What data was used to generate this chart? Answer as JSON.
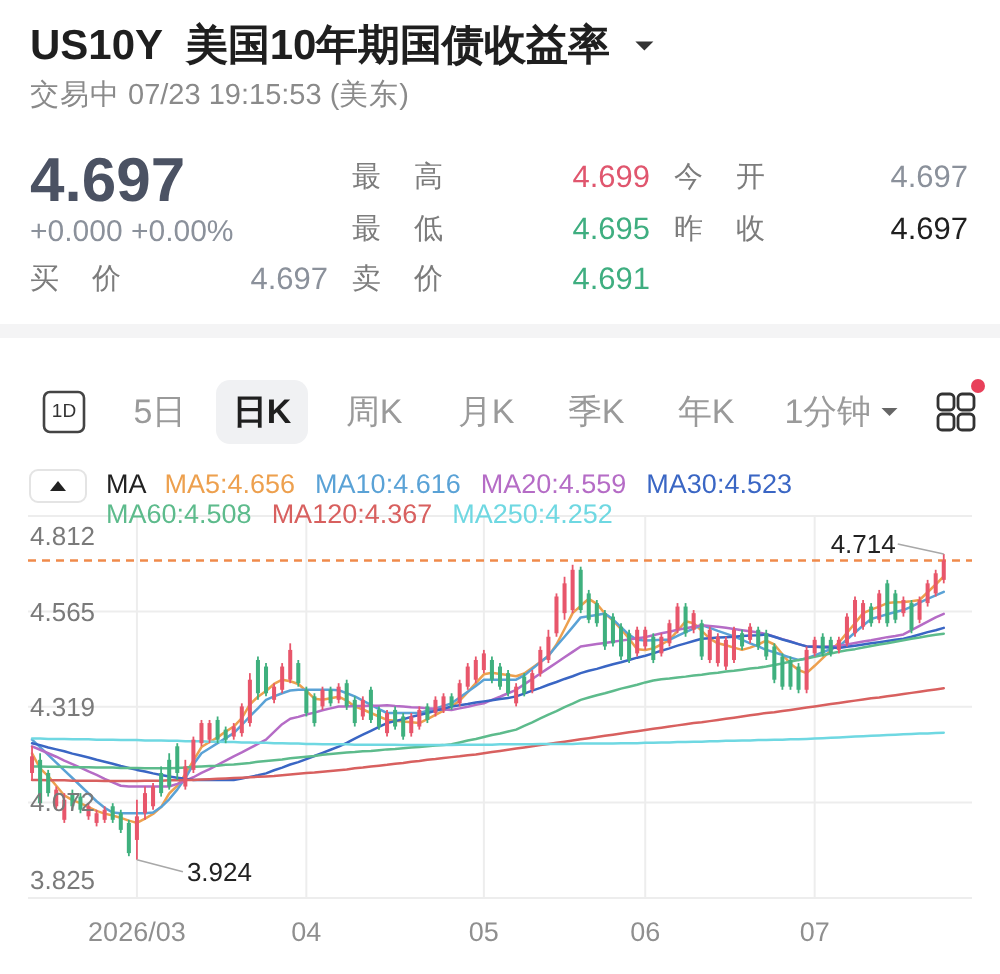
{
  "chart_data": [
    {
      "type": "other",
      "title": "US10Y  美国10年期国债收益率",
      "subtitle": "交易中 07/23 19:15:53 (美东)",
      "annotations": [
        "4.697",
        "+0.000 +0.00%",
        "最 高",
        "4.699",
        "今 开",
        "4.697",
        "最 低",
        "4.695",
        "昨 收",
        "4.697",
        "买 价",
        "4.697",
        "卖 价",
        "4.691",
        "1D",
        "5日",
        "日K",
        "周K",
        "月K",
        "季K",
        "年K",
        "1分钟"
      ]
    },
    {
      "type": "candlestick",
      "categories": [
        null,
        null,
        null,
        null,
        null,
        null,
        null,
        null,
        null,
        null,
        null,
        null,
        null,
        "2026/03",
        null,
        null,
        null,
        null,
        null,
        null,
        null,
        null,
        null,
        null,
        null,
        null,
        null,
        null,
        null,
        null,
        null,
        null,
        null,
        null,
        "04",
        null,
        null,
        null,
        null,
        null,
        null,
        null,
        null,
        null,
        null,
        null,
        null,
        null,
        null,
        null,
        null,
        null,
        null,
        null,
        null,
        null,
        "05",
        null,
        null,
        null,
        null,
        null,
        null,
        null,
        null,
        null,
        null,
        null,
        null,
        null,
        null,
        null,
        null,
        null,
        null,
        null,
        "06",
        null,
        null,
        null,
        null,
        null,
        null,
        null,
        null,
        null,
        null,
        null,
        null,
        null,
        null,
        null,
        null,
        null,
        null,
        null,
        null,
        "07",
        null,
        null,
        null,
        null,
        null,
        null,
        null,
        null,
        null,
        null,
        null,
        null,
        null,
        null,
        null,
        null
      ],
      "ohlc": [
        [
          4.148,
          4.217,
          4.13,
          4.191
        ],
        [
          4.182,
          4.199,
          4.062,
          4.07
        ],
        [
          4.148,
          4.156,
          4.087,
          4.096
        ],
        [
          4.062,
          4.113,
          4.053,
          4.105
        ],
        [
          4.027,
          4.096,
          4.019,
          4.079
        ],
        [
          4.096,
          4.105,
          4.053,
          4.062
        ],
        [
          4.087,
          4.096,
          4.044,
          4.053
        ],
        [
          4.036,
          4.07,
          4.027,
          4.062
        ],
        [
          4.019,
          4.053,
          4.01,
          4.044
        ],
        [
          4.027,
          4.062,
          4.019,
          4.053
        ],
        [
          4.062,
          4.07,
          4.019,
          4.027
        ],
        [
          4.044,
          4.053,
          3.993,
          4.001
        ],
        [
          4.019,
          4.027,
          3.933,
          3.941
        ],
        [
          3.975,
          4.079,
          3.924,
          4.036
        ],
        [
          4.044,
          4.113,
          4.027,
          4.096
        ],
        [
          4.062,
          4.122,
          4.053,
          4.113
        ],
        [
          4.148,
          4.165,
          4.087,
          4.096
        ],
        [
          4.182,
          4.199,
          4.105,
          4.113
        ],
        [
          4.217,
          4.225,
          4.13,
          4.148
        ],
        [
          4.113,
          4.182,
          4.105,
          4.165
        ],
        [
          4.156,
          4.242,
          4.148,
          4.234
        ],
        [
          4.225,
          4.285,
          4.217,
          4.277
        ],
        [
          4.234,
          4.285,
          4.225,
          4.277
        ],
        [
          4.285,
          4.294,
          4.225,
          4.234
        ],
        [
          4.26,
          4.268,
          4.225,
          4.234
        ],
        [
          4.242,
          4.277,
          4.234,
          4.268
        ],
        [
          4.251,
          4.328,
          4.242,
          4.32
        ],
        [
          4.277,
          4.406,
          4.268,
          4.389
        ],
        [
          4.44,
          4.449,
          4.337,
          4.354
        ],
        [
          4.423,
          4.432,
          4.346,
          4.354
        ],
        [
          4.337,
          4.38,
          4.328,
          4.371
        ],
        [
          4.363,
          4.432,
          4.354,
          4.423
        ],
        [
          4.389,
          4.483,
          4.38,
          4.466
        ],
        [
          4.432,
          4.44,
          4.371,
          4.38
        ],
        [
          4.363,
          4.371,
          4.294,
          4.303
        ],
        [
          4.346,
          4.354,
          4.268,
          4.277
        ],
        [
          4.32,
          4.371,
          4.311,
          4.363
        ],
        [
          4.363,
          4.371,
          4.32,
          4.328
        ],
        [
          4.337,
          4.38,
          4.328,
          4.371
        ],
        [
          4.38,
          4.389,
          4.311,
          4.32
        ],
        [
          4.337,
          4.346,
          4.268,
          4.277
        ],
        [
          4.294,
          4.346,
          4.285,
          4.337
        ],
        [
          4.363,
          4.371,
          4.277,
          4.285
        ],
        [
          4.311,
          4.32,
          4.26,
          4.268
        ],
        [
          4.251,
          4.311,
          4.242,
          4.303
        ],
        [
          4.311,
          4.32,
          4.26,
          4.268
        ],
        [
          4.294,
          4.303,
          4.234,
          4.242
        ],
        [
          4.251,
          4.303,
          4.242,
          4.294
        ],
        [
          4.268,
          4.32,
          4.26,
          4.311
        ],
        [
          4.32,
          4.328,
          4.277,
          4.285
        ],
        [
          4.303,
          4.346,
          4.294,
          4.337
        ],
        [
          4.311,
          4.354,
          4.303,
          4.346
        ],
        [
          4.346,
          4.354,
          4.311,
          4.32
        ],
        [
          4.328,
          4.389,
          4.32,
          4.38
        ],
        [
          4.371,
          4.432,
          4.363,
          4.423
        ],
        [
          4.389,
          4.449,
          4.38,
          4.44
        ],
        [
          4.414,
          4.466,
          4.406,
          4.457
        ],
        [
          4.44,
          4.449,
          4.38,
          4.389
        ],
        [
          4.423,
          4.432,
          4.363,
          4.371
        ],
        [
          4.406,
          4.414,
          4.346,
          4.354
        ],
        [
          4.328,
          4.38,
          4.32,
          4.371
        ],
        [
          4.397,
          4.406,
          4.346,
          4.354
        ],
        [
          4.363,
          4.414,
          4.354,
          4.406
        ],
        [
          4.406,
          4.475,
          4.397,
          4.466
        ],
        [
          4.44,
          4.518,
          4.432,
          4.5
        ],
        [
          4.509,
          4.612,
          4.5,
          4.604
        ],
        [
          4.561,
          4.655,
          4.544,
          4.638
        ],
        [
          4.569,
          4.686,
          4.561,
          4.673
        ],
        [
          4.673,
          4.681,
          4.561,
          4.569
        ],
        [
          4.612,
          4.621,
          4.535,
          4.544
        ],
        [
          4.587,
          4.595,
          4.526,
          4.535
        ],
        [
          4.561,
          4.569,
          4.466,
          4.475
        ],
        [
          4.552,
          4.561,
          4.475,
          4.483
        ],
        [
          4.526,
          4.535,
          4.44,
          4.449
        ],
        [
          4.509,
          4.518,
          4.432,
          4.44
        ],
        [
          4.457,
          4.526,
          4.449,
          4.518
        ],
        [
          4.475,
          4.526,
          4.466,
          4.518
        ],
        [
          4.5,
          4.509,
          4.432,
          4.44
        ],
        [
          4.457,
          4.509,
          4.449,
          4.5
        ],
        [
          4.483,
          4.544,
          4.475,
          4.535
        ],
        [
          4.518,
          4.587,
          4.509,
          4.578
        ],
        [
          4.578,
          4.587,
          4.5,
          4.509
        ],
        [
          4.518,
          4.569,
          4.509,
          4.561
        ],
        [
          4.535,
          4.544,
          4.44,
          4.449
        ],
        [
          4.44,
          4.526,
          4.432,
          4.518
        ],
        [
          4.432,
          4.509,
          4.423,
          4.5
        ],
        [
          4.423,
          4.5,
          4.414,
          4.492
        ],
        [
          4.44,
          4.526,
          4.432,
          4.518
        ],
        [
          4.509,
          4.518,
          4.466,
          4.475
        ],
        [
          4.492,
          4.535,
          4.483,
          4.526
        ],
        [
          4.518,
          4.526,
          4.466,
          4.475
        ],
        [
          4.509,
          4.518,
          4.44,
          4.449
        ],
        [
          4.475,
          4.483,
          4.38,
          4.389
        ],
        [
          4.449,
          4.457,
          4.363,
          4.371
        ],
        [
          4.44,
          4.449,
          4.363,
          4.371
        ],
        [
          4.423,
          4.432,
          4.354,
          4.363
        ],
        [
          4.363,
          4.475,
          4.354,
          4.466
        ],
        [
          4.457,
          4.5,
          4.449,
          4.492
        ],
        [
          4.5,
          4.509,
          4.449,
          4.457
        ],
        [
          4.492,
          4.5,
          4.449,
          4.457
        ],
        [
          4.466,
          4.5,
          4.457,
          4.492
        ],
        [
          4.483,
          4.561,
          4.475,
          4.552
        ],
        [
          4.509,
          4.604,
          4.5,
          4.595
        ],
        [
          4.526,
          4.595,
          4.518,
          4.587
        ],
        [
          4.578,
          4.587,
          4.526,
          4.535
        ],
        [
          4.544,
          4.621,
          4.535,
          4.612
        ],
        [
          4.638,
          4.647,
          4.526,
          4.535
        ],
        [
          4.612,
          4.621,
          4.535,
          4.544
        ],
        [
          4.561,
          4.604,
          4.552,
          4.595
        ],
        [
          4.587,
          4.595,
          4.509,
          4.518
        ],
        [
          4.544,
          4.604,
          4.535,
          4.595
        ],
        [
          4.587,
          4.647,
          4.578,
          4.638
        ],
        [
          4.612,
          4.673,
          4.604,
          4.664
        ],
        [
          4.647,
          4.714,
          4.638,
          4.697
        ]
      ],
      "colors": [
        "#e8566b",
        "#3fb07e",
        "#3fb07e",
        "#e8566b",
        "#e8566b",
        "#3fb07e",
        "#3fb07e",
        "#e8566b",
        "#e8566b",
        "#e8566b",
        "#3fb07e",
        "#3fb07e",
        "#3fb07e",
        "#e8566b",
        "#e8566b",
        "#e8566b",
        "#3fb07e",
        "#3fb07e",
        "#3fb07e",
        "#e8566b",
        "#e8566b",
        "#e8566b",
        "#e8566b",
        "#3fb07e",
        "#3fb07e",
        "#e8566b",
        "#e8566b",
        "#e8566b",
        "#3fb07e",
        "#3fb07e",
        "#e8566b",
        "#e8566b",
        "#e8566b",
        "#3fb07e",
        "#3fb07e",
        "#3fb07e",
        "#e8566b",
        "#3fb07e",
        "#e8566b",
        "#3fb07e",
        "#3fb07e",
        "#e8566b",
        "#3fb07e",
        "#3fb07e",
        "#e8566b",
        "#3fb07e",
        "#3fb07e",
        "#e8566b",
        "#e8566b",
        "#3fb07e",
        "#e8566b",
        "#e8566b",
        "#3fb07e",
        "#e8566b",
        "#e8566b",
        "#e8566b",
        "#e8566b",
        "#3fb07e",
        "#3fb07e",
        "#3fb07e",
        "#e8566b",
        "#3fb07e",
        "#e8566b",
        "#e8566b",
        "#e8566b",
        "#e8566b",
        "#e8566b",
        "#e8566b",
        "#3fb07e",
        "#3fb07e",
        "#3fb07e",
        "#3fb07e",
        "#3fb07e",
        "#3fb07e",
        "#3fb07e",
        "#e8566b",
        "#e8566b",
        "#3fb07e",
        "#e8566b",
        "#e8566b",
        "#e8566b",
        "#3fb07e",
        "#e8566b",
        "#3fb07e",
        "#e8566b",
        "#e8566b",
        "#e8566b",
        "#e8566b",
        "#3fb07e",
        "#e8566b",
        "#3fb07e",
        "#3fb07e",
        "#3fb07e",
        "#3fb07e",
        "#3fb07e",
        "#3fb07e",
        "#e8566b",
        "#e8566b",
        "#3fb07e",
        "#3fb07e",
        "#e8566b",
        "#e8566b",
        "#e8566b",
        "#e8566b",
        "#3fb07e",
        "#e8566b",
        "#3fb07e",
        "#3fb07e",
        "#e8566b",
        "#3fb07e",
        "#e8566b",
        "#e8566b",
        "#e8566b",
        "#e8566b"
      ],
      "series": [
        {
          "name": "MA5:4.656",
          "type": "line",
          "color": "#eda04e",
          "values": [
            4.199,
            4.16,
            4.14,
            4.115,
            4.09,
            4.078,
            4.07,
            4.06,
            4.05,
            4.043,
            4.038,
            4.032,
            4.025,
            4.019,
            4.03,
            4.042,
            4.06,
            4.095,
            4.115,
            4.145,
            4.18,
            4.215,
            4.228,
            4.24,
            4.255,
            4.268,
            4.29,
            4.325,
            4.345,
            4.36,
            4.378,
            4.389,
            4.385,
            4.378,
            4.36,
            4.34,
            4.337,
            4.341,
            4.345,
            4.335,
            4.32,
            4.312,
            4.303,
            4.294,
            4.285,
            4.283,
            4.281,
            4.279,
            4.277,
            4.287,
            4.298,
            4.309,
            4.32,
            4.335,
            4.357,
            4.38,
            4.403,
            4.407,
            4.404,
            4.401,
            4.398,
            4.405,
            4.42,
            4.435,
            4.45,
            4.48,
            4.52,
            4.561,
            4.58,
            4.598,
            4.585,
            4.56,
            4.542,
            4.52,
            4.495,
            4.468,
            4.466,
            4.47,
            4.48,
            4.492,
            4.515,
            4.54,
            4.535,
            4.515,
            4.495,
            4.483,
            4.478,
            4.472,
            4.466,
            4.472,
            4.48,
            4.49,
            4.48,
            4.455,
            4.43,
            4.414,
            4.406,
            4.425,
            4.445,
            4.465,
            4.485,
            4.51,
            4.535,
            4.561,
            4.57,
            4.578,
            4.587,
            4.589,
            4.59,
            4.592,
            4.595,
            4.615,
            4.635,
            4.656
          ]
        },
        {
          "name": "MA10:4.616",
          "type": "line",
          "color": "#5aa2d6",
          "values": [
            4.234,
            4.215,
            4.195,
            4.175,
            4.155,
            4.135,
            4.115,
            4.095,
            4.075,
            4.058,
            4.046,
            4.044,
            4.044,
            4.044,
            4.044,
            4.046,
            4.06,
            4.08,
            4.105,
            4.135,
            4.17,
            4.199,
            4.212,
            4.225,
            4.238,
            4.251,
            4.272,
            4.294,
            4.315,
            4.337,
            4.346,
            4.354,
            4.361,
            4.363,
            4.363,
            4.363,
            4.363,
            4.363,
            4.362,
            4.354,
            4.346,
            4.335,
            4.324,
            4.313,
            4.303,
            4.303,
            4.303,
            4.303,
            4.303,
            4.309,
            4.315,
            4.321,
            4.328,
            4.343,
            4.358,
            4.373,
            4.389,
            4.389,
            4.389,
            4.389,
            4.389,
            4.4,
            4.417,
            4.434,
            4.451,
            4.476,
            4.5,
            4.525,
            4.55,
            4.553,
            4.556,
            4.56,
            4.545,
            4.525,
            4.505,
            4.492,
            4.49,
            4.491,
            4.492,
            4.492,
            4.502,
            4.512,
            4.521,
            4.53,
            4.523,
            4.515,
            4.508,
            4.501,
            4.492,
            4.483,
            4.475,
            4.466,
            4.46,
            4.453,
            4.446,
            4.44,
            4.444,
            4.452,
            4.46,
            4.468,
            4.475,
            4.493,
            4.511,
            4.529,
            4.546,
            4.552,
            4.558,
            4.564,
            4.569,
            4.578,
            4.588,
            4.598,
            4.607,
            4.616
          ]
        },
        {
          "name": "MA20:4.559",
          "type": "line",
          "color": "#b56cc6",
          "values": [
            4.217,
            4.208,
            4.199,
            4.19,
            4.18,
            4.171,
            4.162,
            4.152,
            4.143,
            4.133,
            4.124,
            4.115,
            4.113,
            4.113,
            4.113,
            4.113,
            4.113,
            4.113,
            4.12,
            4.128,
            4.137,
            4.148,
            4.158,
            4.169,
            4.18,
            4.191,
            4.201,
            4.212,
            4.223,
            4.234,
            4.254,
            4.274,
            4.288,
            4.293,
            4.299,
            4.304,
            4.31,
            4.315,
            4.32,
            4.32,
            4.321,
            4.321,
            4.322,
            4.322,
            4.323,
            4.321,
            4.32,
            4.318,
            4.317,
            4.315,
            4.314,
            4.312,
            4.311,
            4.315,
            4.319,
            4.324,
            4.328,
            4.337,
            4.345,
            4.354,
            4.363,
            4.377,
            4.391,
            4.405,
            4.419,
            4.433,
            4.447,
            4.461,
            4.475,
            4.478,
            4.481,
            4.484,
            4.487,
            4.49,
            4.493,
            4.496,
            4.499,
            4.504,
            4.509,
            4.513,
            4.518,
            4.522,
            4.526,
            4.53,
            4.528,
            4.526,
            4.523,
            4.52,
            4.517,
            4.514,
            4.511,
            4.507,
            4.5,
            4.494,
            4.488,
            4.481,
            4.475,
            4.475,
            4.475,
            4.475,
            4.476,
            4.48,
            4.484,
            4.488,
            4.491,
            4.495,
            4.499,
            4.502,
            4.506,
            4.517,
            4.528,
            4.539,
            4.55,
            4.559
          ]
        },
        {
          "name": "MA30:4.523",
          "type": "line",
          "color": "#3a66c4",
          "values": [
            4.225,
            4.22,
            4.214,
            4.209,
            4.204,
            4.198,
            4.193,
            4.188,
            4.182,
            4.177,
            4.172,
            4.166,
            4.161,
            4.156,
            4.152,
            4.147,
            4.143,
            4.139,
            4.136,
            4.133,
            4.13,
            4.13,
            4.13,
            4.13,
            4.13,
            4.13,
            4.134,
            4.138,
            4.142,
            4.147,
            4.155,
            4.162,
            4.17,
            4.176,
            4.184,
            4.192,
            4.2,
            4.208,
            4.216,
            4.226,
            4.237,
            4.247,
            4.257,
            4.267,
            4.277,
            4.282,
            4.287,
            4.293,
            4.298,
            4.303,
            4.309,
            4.314,
            4.32,
            4.323,
            4.326,
            4.33,
            4.333,
            4.336,
            4.339,
            4.342,
            4.346,
            4.353,
            4.361,
            4.368,
            4.376,
            4.383,
            4.391,
            4.398,
            4.406,
            4.412,
            4.417,
            4.423,
            4.429,
            4.434,
            4.44,
            4.446,
            4.451,
            4.457,
            4.464,
            4.47,
            4.477,
            4.483,
            4.489,
            4.495,
            4.496,
            4.498,
            4.499,
            4.5,
            4.502,
            4.503,
            4.504,
            4.506,
            4.5,
            4.493,
            4.487,
            4.481,
            4.475,
            4.474,
            4.473,
            4.472,
            4.471,
            4.474,
            4.477,
            4.48,
            4.483,
            4.486,
            4.489,
            4.492,
            4.495,
            4.5,
            4.506,
            4.512,
            4.517,
            4.523
          ]
        },
        {
          "name": "MA60:4.508",
          "type": "line",
          "color": "#5dbb8c",
          "values": [
            4.165,
            4.165,
            4.164,
            4.164,
            4.164,
            4.163,
            4.163,
            4.163,
            4.162,
            4.162,
            4.162,
            4.161,
            4.161,
            4.161,
            4.16,
            4.16,
            4.16,
            4.16,
            4.161,
            4.162,
            4.164,
            4.165,
            4.166,
            4.167,
            4.169,
            4.17,
            4.172,
            4.174,
            4.177,
            4.179,
            4.181,
            4.183,
            4.186,
            4.188,
            4.19,
            4.192,
            4.195,
            4.197,
            4.199,
            4.201,
            4.202,
            4.204,
            4.205,
            4.207,
            4.209,
            4.21,
            4.212,
            4.214,
            4.215,
            4.217,
            4.219,
            4.22,
            4.222,
            4.227,
            4.232,
            4.236,
            4.241,
            4.246,
            4.25,
            4.255,
            4.26,
            4.27,
            4.279,
            4.289,
            4.299,
            4.308,
            4.318,
            4.327,
            4.337,
            4.343,
            4.349,
            4.354,
            4.36,
            4.366,
            4.371,
            4.376,
            4.382,
            4.387,
            4.39,
            4.392,
            4.395,
            4.397,
            4.4,
            4.402,
            4.405,
            4.407,
            4.41,
            4.412,
            4.415,
            4.418,
            4.42,
            4.423,
            4.427,
            4.431,
            4.436,
            4.44,
            4.444,
            4.448,
            4.453,
            4.457,
            4.461,
            4.465,
            4.468,
            4.472,
            4.476,
            4.48,
            4.483,
            4.487,
            4.491,
            4.495,
            4.498,
            4.502,
            4.505,
            4.508
          ]
        },
        {
          "name": "MA120:4.367",
          "type": "line",
          "color": "#d8605f",
          "values": [
            4.13,
            4.13,
            4.129,
            4.129,
            4.129,
            4.128,
            4.128,
            4.128,
            4.128,
            4.127,
            4.127,
            4.127,
            4.127,
            4.127,
            4.128,
            4.128,
            4.128,
            4.129,
            4.129,
            4.13,
            4.13,
            4.131,
            4.132,
            4.133,
            4.134,
            4.135,
            4.136,
            4.137,
            4.138,
            4.139,
            4.14,
            4.142,
            4.144,
            4.146,
            4.148,
            4.149,
            4.151,
            4.153,
            4.155,
            4.157,
            4.16,
            4.162,
            4.165,
            4.167,
            4.169,
            4.172,
            4.174,
            4.177,
            4.179,
            4.182,
            4.184,
            4.187,
            4.189,
            4.191,
            4.194,
            4.196,
            4.199,
            4.202,
            4.205,
            4.208,
            4.211,
            4.214,
            4.217,
            4.22,
            4.223,
            4.226,
            4.229,
            4.232,
            4.235,
            4.238,
            4.241,
            4.244,
            4.247,
            4.25,
            4.253,
            4.256,
            4.259,
            4.262,
            4.265,
            4.268,
            4.271,
            4.274,
            4.277,
            4.279,
            4.282,
            4.285,
            4.288,
            4.291,
            4.294,
            4.297,
            4.3,
            4.303,
            4.305,
            4.308,
            4.311,
            4.314,
            4.317,
            4.32,
            4.323,
            4.326,
            4.329,
            4.332,
            4.335,
            4.338,
            4.341,
            4.343,
            4.346,
            4.349,
            4.352,
            4.355,
            4.358,
            4.361,
            4.364,
            4.367
          ]
        },
        {
          "name": "MA250:4.252",
          "type": "line",
          "color": "#6fd8e2",
          "values": [
            4.237,
            4.237,
            4.236,
            4.236,
            4.236,
            4.235,
            4.235,
            4.235,
            4.234,
            4.234,
            4.234,
            4.233,
            4.233,
            4.233,
            4.232,
            4.232,
            4.232,
            4.231,
            4.231,
            4.23,
            4.23,
            4.23,
            4.229,
            4.229,
            4.228,
            4.228,
            4.227,
            4.227,
            4.226,
            4.226,
            4.225,
            4.225,
            4.224,
            4.224,
            4.223,
            4.223,
            4.222,
            4.222,
            4.222,
            4.222,
            4.221,
            4.221,
            4.221,
            4.221,
            4.221,
            4.221,
            4.22,
            4.22,
            4.22,
            4.22,
            4.22,
            4.22,
            4.22,
            4.221,
            4.221,
            4.221,
            4.221,
            4.221,
            4.222,
            4.222,
            4.222,
            4.222,
            4.222,
            4.223,
            4.223,
            4.223,
            4.223,
            4.223,
            4.224,
            4.224,
            4.224,
            4.224,
            4.224,
            4.225,
            4.225,
            4.225,
            4.226,
            4.226,
            4.227,
            4.227,
            4.228,
            4.228,
            4.229,
            4.229,
            4.23,
            4.23,
            4.231,
            4.231,
            4.232,
            4.232,
            4.233,
            4.233,
            4.234,
            4.234,
            4.235,
            4.235,
            4.236,
            4.237,
            4.238,
            4.239,
            4.24,
            4.241,
            4.242,
            4.243,
            4.244,
            4.245,
            4.246,
            4.247,
            4.248,
            4.249,
            4.25,
            4.25,
            4.251,
            4.252
          ]
        }
      ],
      "ylim": [
        3.825,
        4.812
      ],
      "yticks": [
        3.825,
        4.072,
        4.319,
        4.565,
        4.812
      ],
      "grid": true,
      "legend": "top left",
      "legend_title": "MA",
      "ref_lines": [
        {
          "axis": "y",
          "value": 4.697,
          "color": "#f08a4b",
          "line_style": "dashed"
        }
      ],
      "annotations": [
        {
          "text": "4.714",
          "y": 4.714
        },
        {
          "text": "3.924",
          "x": "2026/03",
          "y": 3.924
        }
      ]
    }
  ]
}
